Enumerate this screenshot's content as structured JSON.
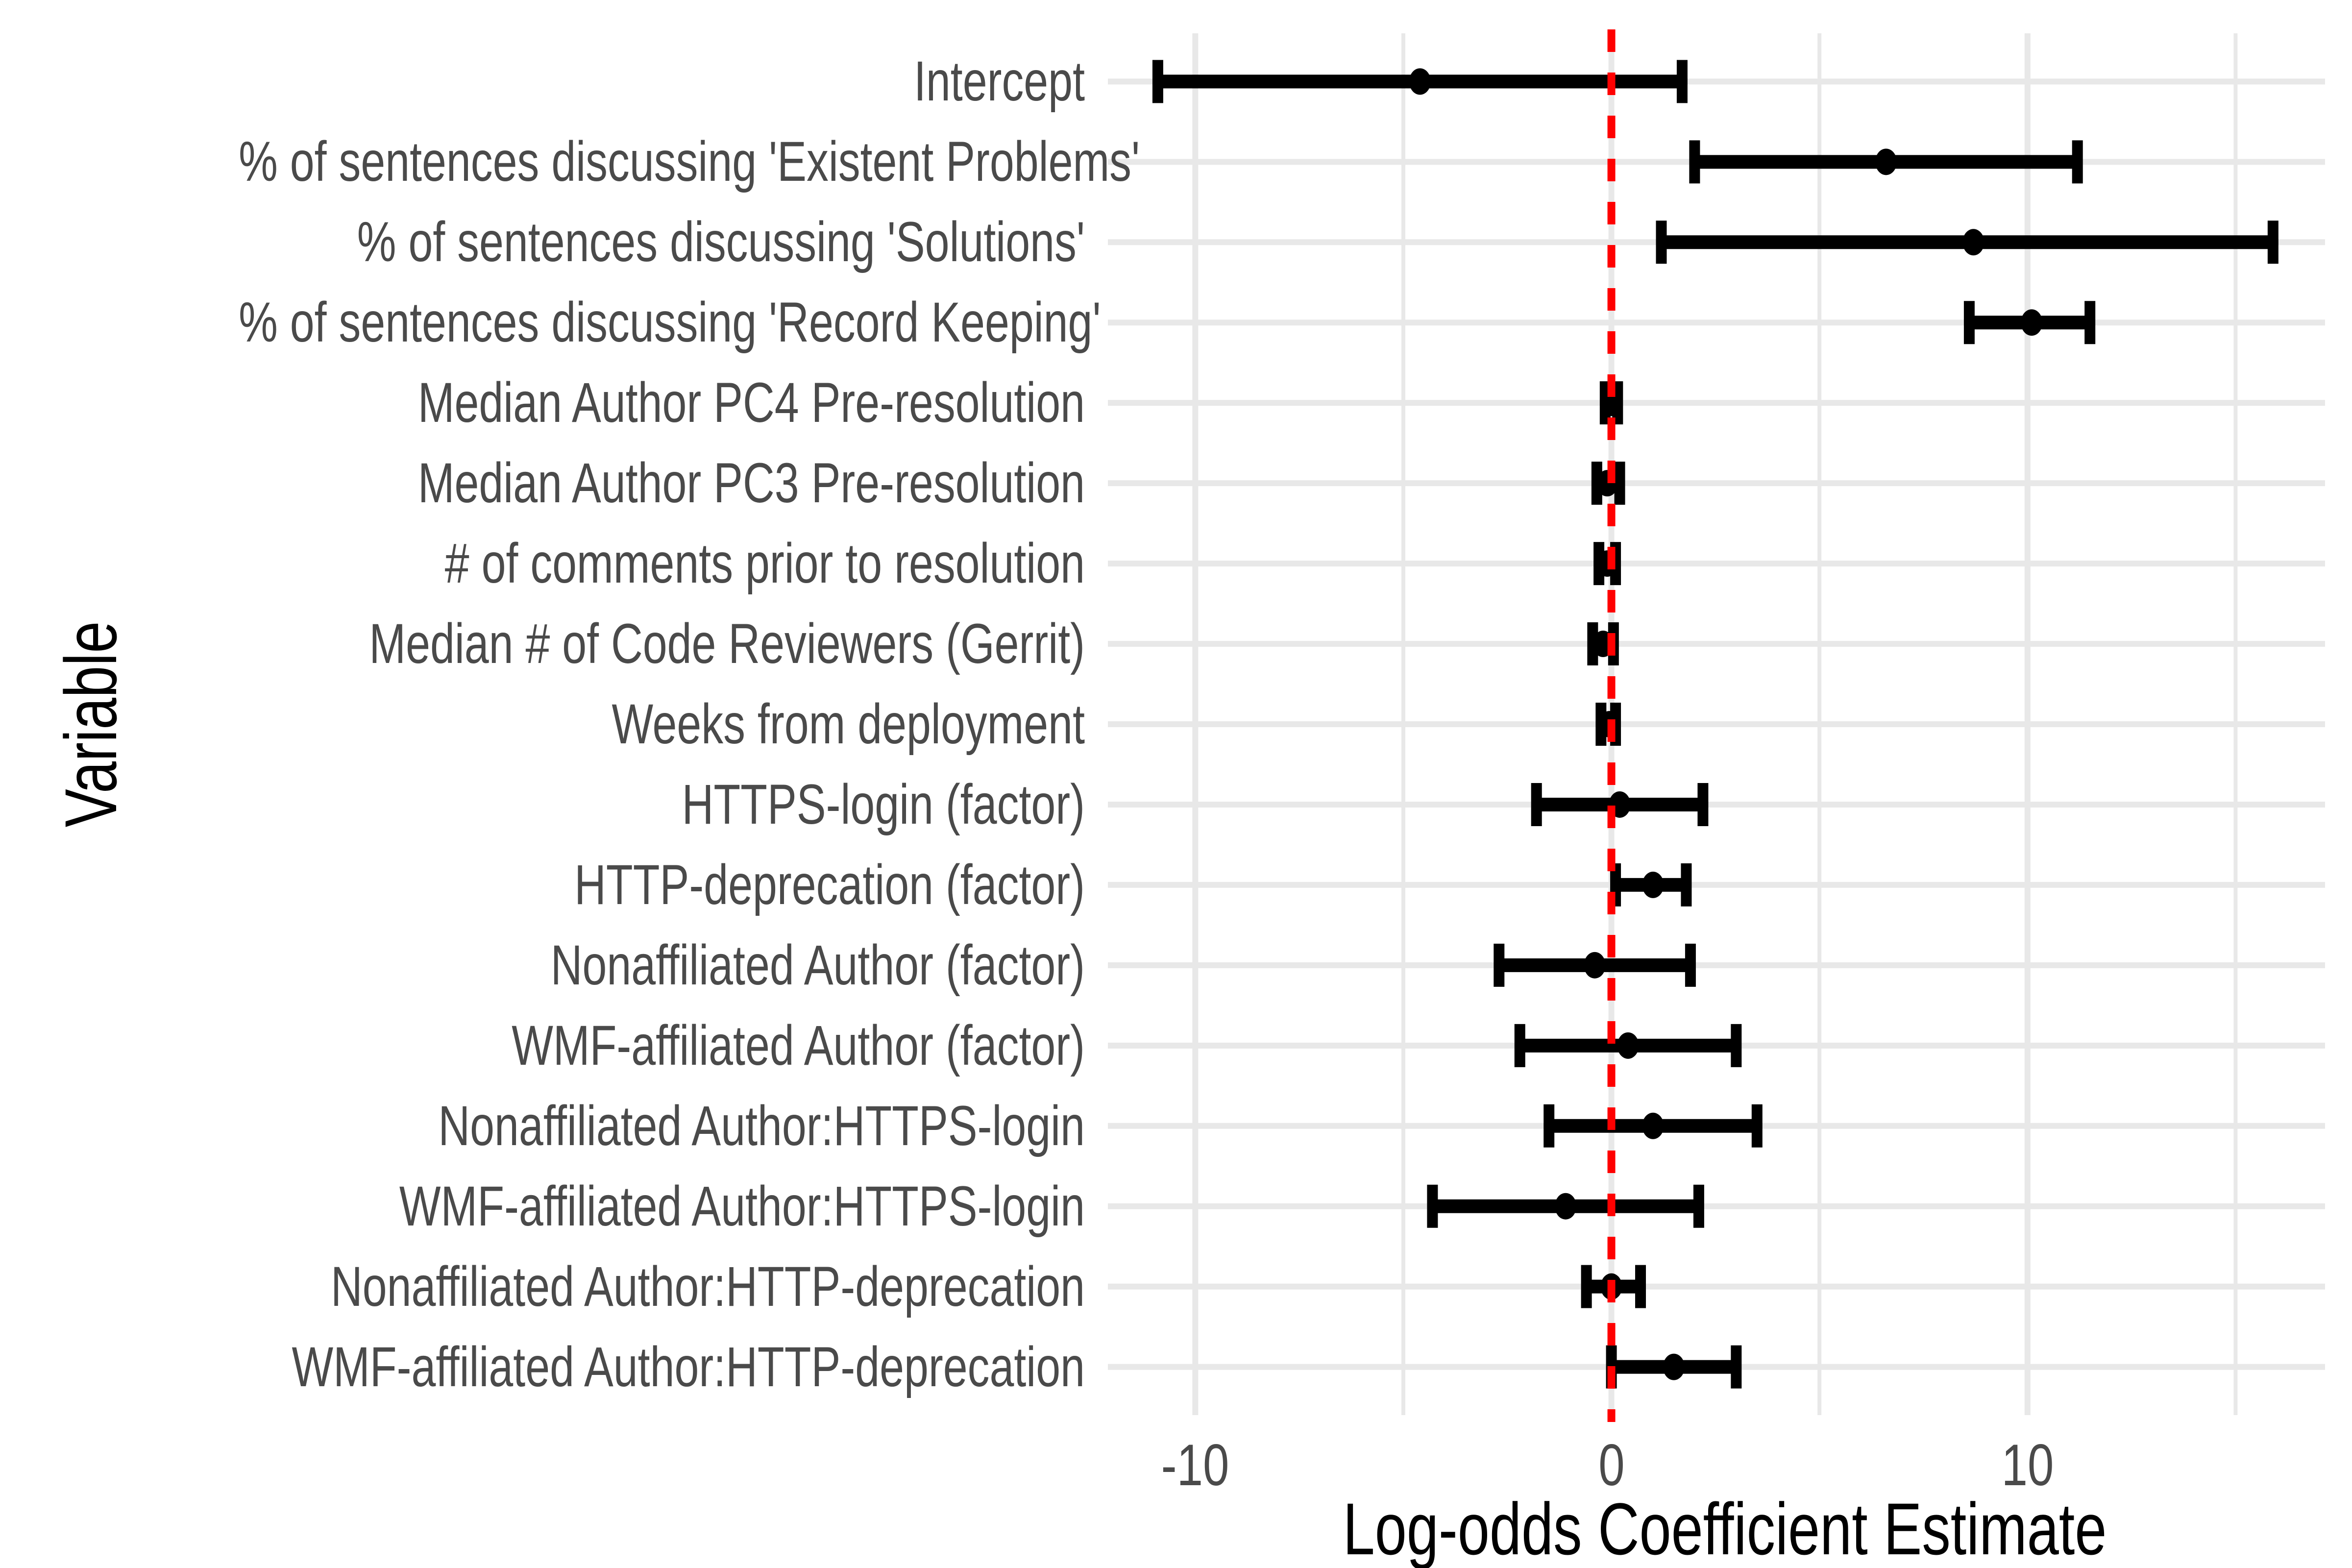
{
  "colors": {
    "background": "#FFFFFF",
    "gridline": "#E8E8E8",
    "reference_line": "#FF0000",
    "data_points": "#000000",
    "axis_text": "#4A4A4A",
    "axis_title": "#000000"
  },
  "chart_data": {
    "type": "pointrange",
    "title": "",
    "xlabel": "Log-odds Coefficient Estimate",
    "ylabel": "Variable",
    "legend_position": "none",
    "grid": "on",
    "xlim": [
      -12.1,
      17.15
    ],
    "x_ticks": [
      {
        "value": -10,
        "label": "-10"
      },
      {
        "value": 0,
        "label": "0"
      },
      {
        "value": 10,
        "label": "10"
      }
    ],
    "major_gridlines_x": [
      -10,
      0,
      10
    ],
    "minor_gridlines_x": [
      -5,
      5,
      15
    ],
    "reference_line": {
      "x": 0,
      "style": "dashed",
      "color": "#FF0000"
    },
    "rows": [
      {
        "label": "Intercept",
        "estimate": -4.6,
        "lower": -10.9,
        "upper": 1.7
      },
      {
        "label": "% of sentences discussing 'Existent Problems'",
        "estimate": 6.6,
        "lower": 2.0,
        "upper": 11.2
      },
      {
        "label": "% of sentences discussing 'Solutions'",
        "estimate": 8.7,
        "lower": 1.2,
        "upper": 15.9
      },
      {
        "label": "% of sentences discussing 'Record Keeping'",
        "estimate": 10.1,
        "lower": 8.6,
        "upper": 11.5
      },
      {
        "label": "Median Author PC4 Pre-resolution",
        "estimate": 0.0,
        "lower": -0.15,
        "upper": 0.15
      },
      {
        "label": "Median Author PC3 Pre-resolution",
        "estimate": -0.1,
        "lower": -0.35,
        "upper": 0.2
      },
      {
        "label": "# of comments prior to resolution",
        "estimate": -0.1,
        "lower": -0.3,
        "upper": 0.1
      },
      {
        "label": "Median # of Code Reviewers (Gerrit)",
        "estimate": -0.2,
        "lower": -0.45,
        "upper": 0.05
      },
      {
        "label": "Weeks from deployment",
        "estimate": -0.05,
        "lower": -0.25,
        "upper": 0.1
      },
      {
        "label": "HTTPS-login (factor)",
        "estimate": 0.2,
        "lower": -1.8,
        "upper": 2.2
      },
      {
        "label": "HTTP-deprecation (factor)",
        "estimate": 1.0,
        "lower": 0.1,
        "upper": 1.8
      },
      {
        "label": "Nonaffiliated Author (factor)",
        "estimate": -0.4,
        "lower": -2.7,
        "upper": 1.9
      },
      {
        "label": "WMF-affiliated Author (factor)",
        "estimate": 0.4,
        "lower": -2.2,
        "upper": 3.0
      },
      {
        "label": "Nonaffiliated Author:HTTPS-login",
        "estimate": 1.0,
        "lower": -1.5,
        "upper": 3.5
      },
      {
        "label": "WMF-affiliated Author:HTTPS-login",
        "estimate": -1.1,
        "lower": -4.3,
        "upper": 2.1
      },
      {
        "label": "Nonaffiliated Author:HTTP-deprecation",
        "estimate": 0.0,
        "lower": -0.6,
        "upper": 0.7
      },
      {
        "label": "WMF-affiliated Author:HTTP-deprecation",
        "estimate": 1.5,
        "lower": 0.0,
        "upper": 3.0
      }
    ]
  }
}
